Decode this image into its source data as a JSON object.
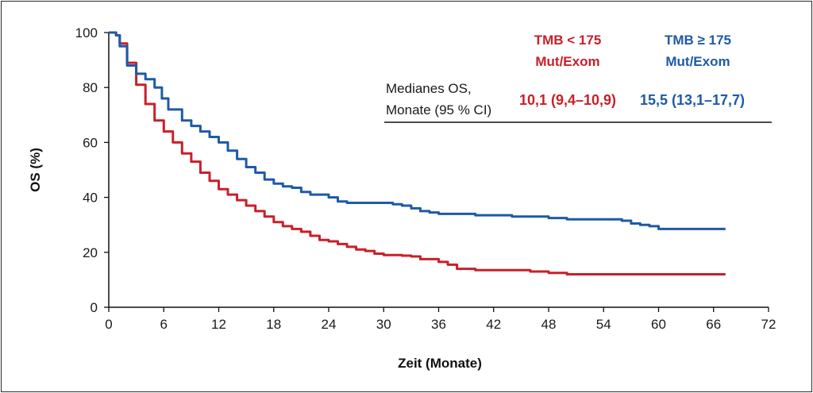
{
  "chart_data": {
    "type": "line",
    "xlabel": "Zeit (Monate)",
    "ylabel": "OS (%)",
    "xlim": [
      0,
      72
    ],
    "ylim": [
      0,
      100
    ],
    "x_ticks": [
      "0",
      "6",
      "12",
      "18",
      "24",
      "30",
      "36",
      "42",
      "48",
      "54",
      "60",
      "66",
      "72"
    ],
    "y_ticks": [
      "0",
      "20",
      "40",
      "60",
      "80",
      "100"
    ],
    "grid": false,
    "colors": {
      "low": "#c8202a",
      "high": "#1e5aa6"
    },
    "legend_table": {
      "row_label_line1": "Medianes OS,",
      "row_label_line2": "Monate (95 % CI)",
      "low_header_line1": "TMB < 175",
      "low_header_line2": "Mut/Exom",
      "high_header_line1": "TMB ≥ 175",
      "high_header_line2": "Mut/Exom",
      "low_value": "10,1 (9,4–10,9)",
      "high_value": "15,5 (13,1–17,7)"
    },
    "series": [
      {
        "key": "low",
        "name": "TMB < 175 Mut/Exom",
        "x": [
          0,
          0.8,
          1.2,
          2,
          3,
          4,
          5,
          6,
          7,
          8,
          9,
          10,
          11,
          12,
          13,
          14,
          15,
          16,
          17,
          18,
          19,
          20,
          21,
          22,
          23,
          24,
          25,
          26,
          27,
          28,
          29,
          30,
          32,
          33,
          34,
          36,
          37,
          38,
          40,
          42,
          44,
          46,
          48,
          50,
          52,
          54,
          56,
          58,
          60,
          62,
          64,
          66,
          67.3
        ],
        "y": [
          100,
          99,
          96,
          89,
          81,
          74,
          68,
          64,
          60,
          56,
          53,
          49,
          46,
          43,
          41,
          39,
          37,
          35,
          33,
          31,
          29.5,
          28.5,
          27.5,
          26,
          24.5,
          24,
          23,
          22,
          21,
          20.5,
          19.5,
          19,
          18.8,
          18.5,
          17.5,
          16.5,
          15.5,
          14,
          13.5,
          13.5,
          13.5,
          13,
          12.5,
          12,
          12,
          12,
          12,
          12,
          12,
          12,
          12,
          12,
          12
        ]
      },
      {
        "key": "high",
        "name": "TMB ≥ 175 Mut/Exom",
        "x": [
          0,
          0.8,
          1.2,
          2,
          3,
          4,
          5,
          5.8,
          6.5,
          8,
          9,
          10,
          11,
          12,
          13,
          14,
          15,
          16,
          17,
          18,
          19,
          20,
          21,
          22,
          24,
          25,
          26,
          28,
          30,
          31,
          32,
          33,
          34,
          35,
          36,
          38,
          40,
          42,
          44,
          46,
          48,
          50,
          52,
          54,
          56,
          57,
          58,
          59,
          60,
          62,
          64,
          66,
          67.3
        ],
        "y": [
          100,
          99,
          95,
          88,
          85,
          83,
          80,
          76,
          72,
          68,
          66,
          64,
          62,
          60,
          57,
          54,
          51,
          49,
          46.5,
          45,
          44,
          43.5,
          42,
          41,
          40,
          38.5,
          38,
          38,
          38,
          37.5,
          37,
          36,
          35,
          34.5,
          34,
          34,
          33.5,
          33.5,
          33,
          33,
          32.5,
          32,
          32,
          32,
          31.5,
          30.5,
          30,
          29.5,
          28.5,
          28.5,
          28.5,
          28.5,
          28.5
        ]
      }
    ]
  }
}
